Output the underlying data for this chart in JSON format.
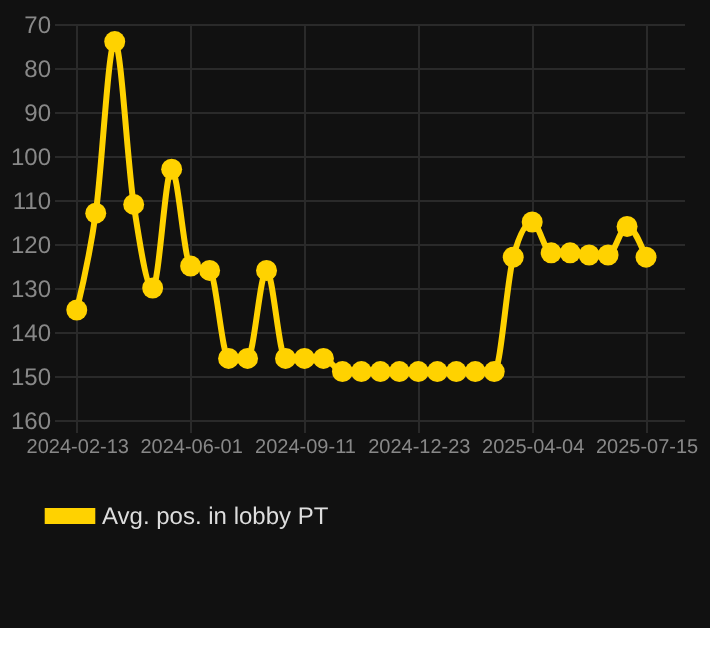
{
  "chart_data": {
    "type": "line",
    "categories": [
      "2024-02-13",
      null,
      null,
      null,
      null,
      null,
      "2024-06-01",
      null,
      null,
      null,
      null,
      null,
      "2024-09-11",
      null,
      null,
      null,
      null,
      null,
      "2024-12-23",
      null,
      null,
      null,
      null,
      null,
      "2025-04-04",
      null,
      null,
      null,
      null,
      null,
      "2025-07-15"
    ],
    "series": [
      {
        "name": "Avg. pos. in lobby PT",
        "color": "#ffd200",
        "values": [
          135,
          113,
          74,
          111,
          130,
          103,
          125,
          126,
          146,
          146,
          126,
          146,
          146,
          146,
          149,
          149,
          149,
          149,
          149,
          149,
          149,
          149,
          149,
          123,
          115,
          122,
          122,
          122.5,
          122.5,
          116,
          123
        ]
      }
    ],
    "ylim": [
      160,
      70
    ],
    "yticks": [
      70,
      80,
      90,
      100,
      110,
      120,
      130,
      140,
      150,
      160
    ],
    "grid": true,
    "legend": "bottom",
    "marker": "circle",
    "line_style": "solid"
  }
}
